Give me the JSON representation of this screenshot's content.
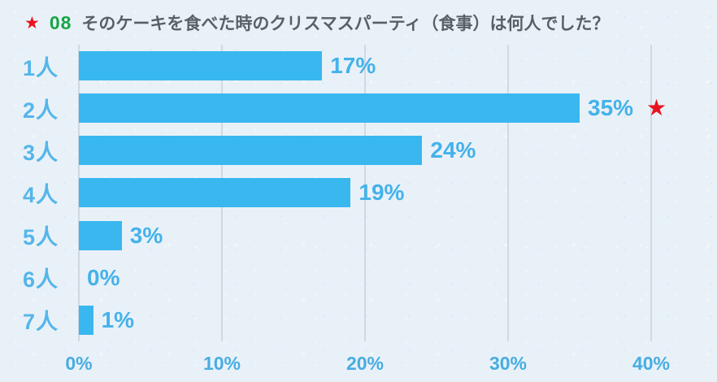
{
  "title": {
    "star": "★",
    "number": "08",
    "text": "そのケーキを食べた時のクリスマスパーティ（食事）は何人でした？"
  },
  "chart_data": {
    "type": "bar",
    "orientation": "horizontal",
    "title": "そのケーキを食べた時のクリスマスパーティ（食事）は何人でした？",
    "categories": [
      "1人",
      "2人",
      "3人",
      "4人",
      "5人",
      "6人",
      "7人"
    ],
    "values": [
      17,
      35,
      24,
      19,
      3,
      0,
      1
    ],
    "value_labels": [
      "17%",
      "35%",
      "24%",
      "19%",
      "3%",
      "0%",
      "1%"
    ],
    "xlim": [
      0,
      40
    ],
    "xticks": [
      0,
      10,
      20,
      30,
      40
    ],
    "xtick_labels": [
      "0%",
      "10%",
      "20%",
      "30%",
      "40%"
    ],
    "grid": "vertical",
    "legend": "none",
    "max_marker": {
      "symbol": "★",
      "index": 1,
      "category": "2人"
    },
    "colors": {
      "bar": "#39b7ef",
      "category_label": "#54b6ea",
      "value_label": "#44b2ea",
      "axis_label": "#47ade2",
      "gridline": "#b9c1c9",
      "marker": "#e8131e",
      "title_number": "#17a545",
      "background": "#e9f1f8"
    }
  }
}
